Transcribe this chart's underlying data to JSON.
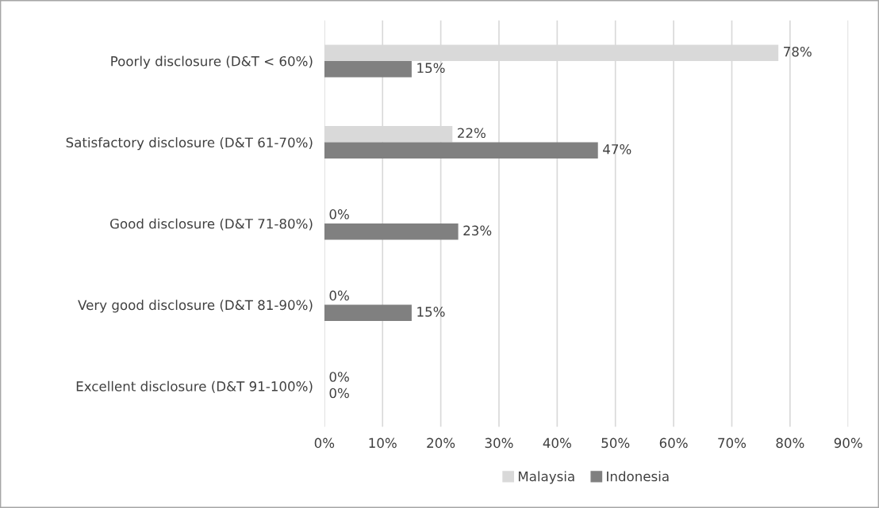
{
  "chart_data": {
    "type": "bar",
    "orientation": "horizontal",
    "categories": [
      "Poorly disclosure (D&T < 60%)",
      "Satisfactory disclosure (D&T 61-70%)",
      "Good disclosure (D&T 71-80%)",
      "Very good disclosure (D&T 81-90%)",
      "Excellent disclosure (D&T 91-100%)"
    ],
    "series": [
      {
        "name": "Malaysia",
        "color": "#d9d9d9",
        "values": [
          78,
          22,
          0,
          0,
          0
        ],
        "value_labels": [
          "78%",
          "22%",
          "0%",
          "0%",
          "0%"
        ]
      },
      {
        "name": "Indonesia",
        "color": "#808080",
        "values": [
          15,
          47,
          23,
          15,
          0
        ],
        "value_labels": [
          "15%",
          "47%",
          "23%",
          "15%",
          "0%"
        ]
      }
    ],
    "xlim": [
      0,
      90
    ],
    "xticks": [
      {
        "value": 0,
        "label": "0%"
      },
      {
        "value": 10,
        "label": "10%"
      },
      {
        "value": 20,
        "label": "20%"
      },
      {
        "value": 30,
        "label": "30%"
      },
      {
        "value": 40,
        "label": "40%"
      },
      {
        "value": 50,
        "label": "50%"
      },
      {
        "value": 60,
        "label": "60%"
      },
      {
        "value": 70,
        "label": "70%"
      },
      {
        "value": 80,
        "label": "80%"
      },
      {
        "value": 90,
        "label": "90%"
      }
    ],
    "grid": "x",
    "legend": "bottom"
  }
}
